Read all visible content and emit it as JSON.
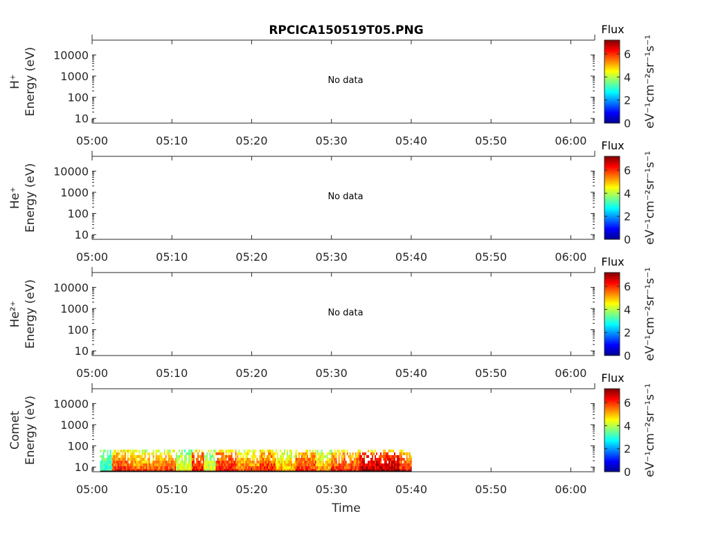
{
  "chart_data": {
    "type": "heatmap",
    "title": "RPCICA150519T05.PNG",
    "xlabel": "Time",
    "x_tick_labels": [
      "05:00",
      "05:10",
      "05:20",
      "05:30",
      "05:40",
      "05:50",
      "06:00"
    ],
    "x_range_minutes": [
      0,
      63
    ],
    "ylabel": "Energy (eV)",
    "y_scale": "log",
    "y_range": [
      6,
      50000
    ],
    "y_tick_values": [
      10,
      100,
      1000,
      10000
    ],
    "y_tick_labels": [
      "10",
      "100",
      "1000",
      "10000"
    ],
    "colorbar": {
      "title": "Flux",
      "label": "eV⁻¹cm⁻²sr⁻¹s⁻¹",
      "range": [
        0,
        7.2
      ],
      "tick_values": [
        0,
        2,
        4,
        6
      ],
      "tick_labels": [
        "0",
        "2",
        "4",
        "6"
      ],
      "colormap": "jet"
    },
    "panels": [
      {
        "species": "H⁺",
        "status": "No data",
        "data": []
      },
      {
        "species": "He⁺",
        "status": "No data",
        "data": []
      },
      {
        "species": "He²⁺",
        "status": "No data",
        "data": []
      },
      {
        "species": "Comet",
        "status": "",
        "data_time_range_minutes": [
          1,
          40
        ],
        "data_energy_range": [
          6,
          80
        ],
        "data": [
          {
            "t": [
              1.0,
              2.5
            ],
            "flux_low": 3.0,
            "flux_high": 3.5,
            "top": 80
          },
          {
            "t": [
              2.5,
              5.0
            ],
            "flux_low": 6.5,
            "flux_high": 4.5,
            "top": 80
          },
          {
            "t": [
              5.0,
              9.0
            ],
            "flux_low": 6.0,
            "flux_high": 4.0,
            "top": 80
          },
          {
            "t": [
              9.0,
              10.5
            ],
            "flux_low": 6.2,
            "flux_high": 4.2,
            "top": 80
          },
          {
            "t": [
              10.5,
              12.5
            ],
            "flux_low": 4.5,
            "flux_high": 3.5,
            "top": 80
          },
          {
            "t": [
              12.5,
              14.0
            ],
            "flux_low": 6.5,
            "flux_high": 5.2,
            "top": 80
          },
          {
            "t": [
              14.0,
              15.5
            ],
            "flux_low": 4.5,
            "flux_high": 3.6,
            "top": 80
          },
          {
            "t": [
              15.5,
              18.0
            ],
            "flux_low": 6.5,
            "flux_high": 5.0,
            "top": 80
          },
          {
            "t": [
              18.0,
              21.0
            ],
            "flux_low": 5.8,
            "flux_high": 4.2,
            "top": 80
          },
          {
            "t": [
              21.0,
              23.0
            ],
            "flux_low": 6.3,
            "flux_high": 4.8,
            "top": 80
          },
          {
            "t": [
              23.0,
              25.5
            ],
            "flux_low": 5.2,
            "flux_high": 4.0,
            "top": 80
          },
          {
            "t": [
              25.5,
              28.0
            ],
            "flux_low": 6.3,
            "flux_high": 4.6,
            "top": 80
          },
          {
            "t": [
              28.0,
              30.0
            ],
            "flux_low": 5.5,
            "flux_high": 3.8,
            "top": 80
          },
          {
            "t": [
              30.0,
              33.5
            ],
            "flux_low": 6.2,
            "flux_high": 4.8,
            "top": 80
          },
          {
            "t": [
              33.5,
              38.5
            ],
            "flux_low": 7.0,
            "flux_high": 5.5,
            "top": 80
          },
          {
            "t": [
              38.5,
              40.0
            ],
            "flux_low": 6.4,
            "flux_high": 4.8,
            "top": 80
          }
        ]
      }
    ]
  }
}
